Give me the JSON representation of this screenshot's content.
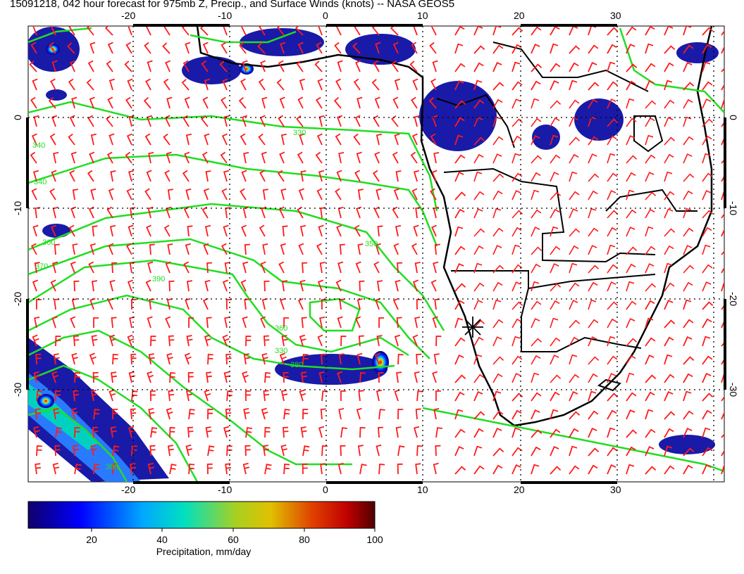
{
  "title": "15091218, 042 hour forecast for 975mb Z, Precip., and Surface Winds (knots) -- NASA GEOS5",
  "map": {
    "lon_ticks": [
      "-20",
      "-10",
      "0",
      "10",
      "20",
      "30"
    ],
    "lat_ticks": [
      "0",
      "-10",
      "-20",
      "-30"
    ],
    "contour_labels": [
      "330",
      "340",
      "350",
      "360",
      "370",
      "380",
      "390",
      "340",
      "360",
      "380",
      "330"
    ],
    "colors": {
      "coast": "#000000",
      "contour": "#22dd22",
      "wind_barb": "#ff1a1a",
      "grid": "#000000"
    },
    "marker": "site-asterisk-marker"
  },
  "colorbar": {
    "ticks": [
      "20",
      "40",
      "60",
      "80",
      "100"
    ],
    "label": "Precipitation, mm/day",
    "colors": [
      "#10006a",
      "#0000ff",
      "#00b4ff",
      "#00e0c0",
      "#a0d020",
      "#e0c000",
      "#e05000",
      "#c00000",
      "#500000"
    ]
  }
}
